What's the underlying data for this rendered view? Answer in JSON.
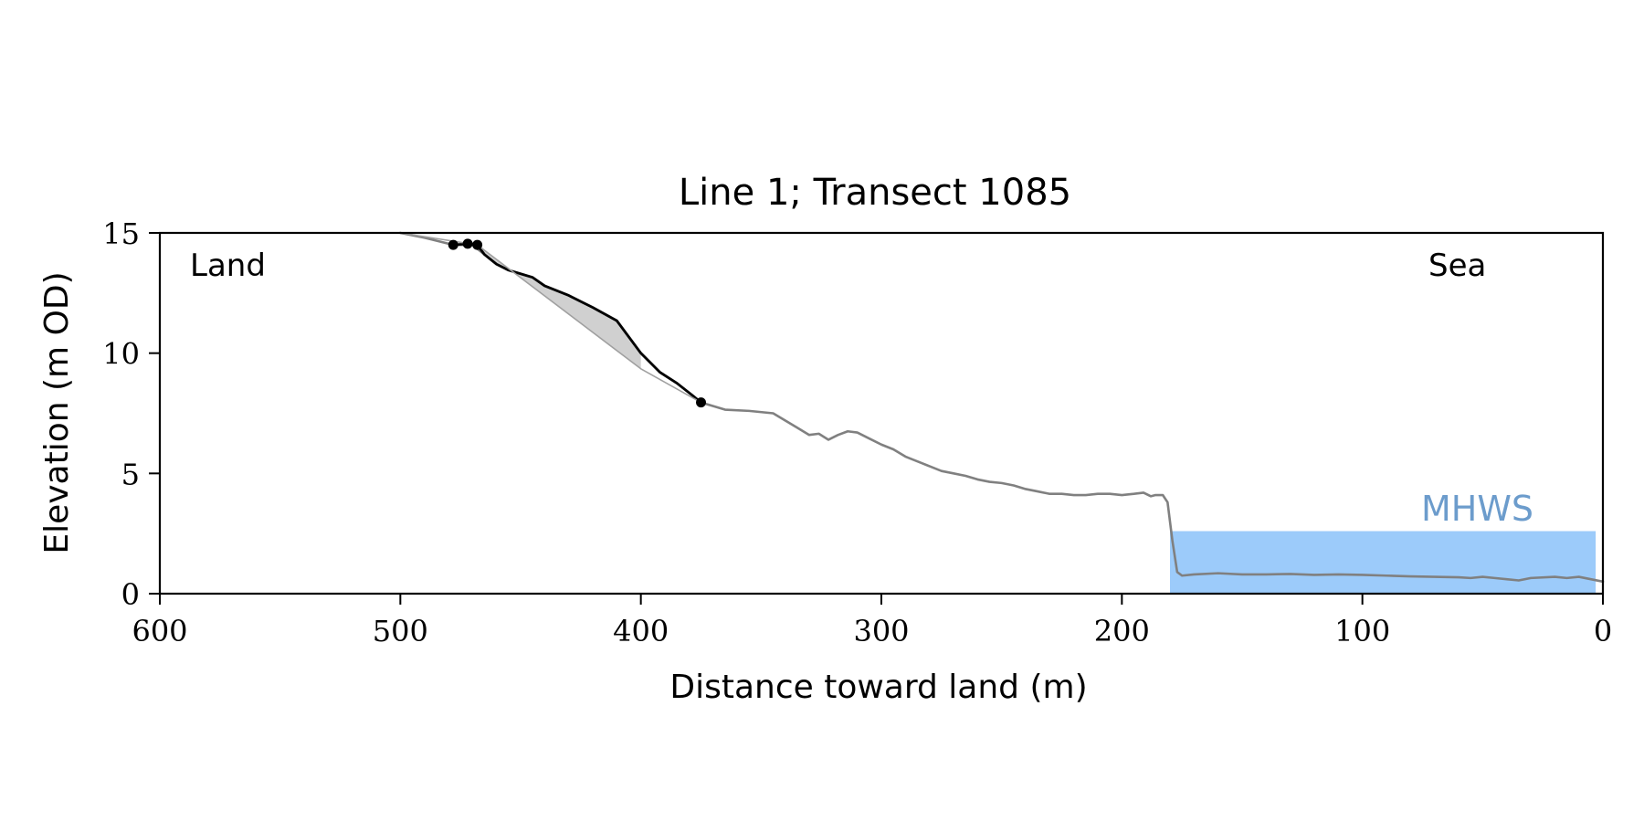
{
  "chart_data": {
    "type": "line",
    "title": "Line 1; Transect 1085",
    "xlabel": "Distance toward land (m)",
    "ylabel": "Elevation (m OD)",
    "xlim": [
      600,
      0
    ],
    "ylim": [
      0,
      15
    ],
    "x_ticks": [
      600,
      500,
      400,
      300,
      200,
      100,
      0
    ],
    "y_ticks": [
      0,
      5,
      10,
      15
    ],
    "annotations": {
      "land": "Land",
      "sea": "Sea",
      "mhws": "MHWS"
    },
    "mhws": {
      "level": 2.6,
      "x_range": [
        180,
        3
      ],
      "color": "#9ccbfa",
      "label_color": "#6c9ccc"
    },
    "series": [
      {
        "role": "full-profile",
        "color": "#808080",
        "points": [
          [
            500,
            15.0
          ],
          [
            490,
            14.8
          ],
          [
            478,
            14.5
          ],
          [
            470,
            14.5
          ],
          [
            465,
            14.1
          ],
          [
            460,
            13.7
          ],
          [
            455,
            13.45
          ],
          [
            450,
            13.3
          ],
          [
            445,
            13.15
          ],
          [
            440,
            12.8
          ],
          [
            430,
            12.4
          ],
          [
            420,
            11.9
          ],
          [
            410,
            11.35
          ],
          [
            400,
            10.0
          ],
          [
            392,
            9.2
          ],
          [
            385,
            8.75
          ],
          [
            378,
            8.2
          ],
          [
            375,
            7.95
          ],
          [
            365,
            7.65
          ],
          [
            355,
            7.6
          ],
          [
            345,
            7.5
          ],
          [
            340,
            7.2
          ],
          [
            335,
            6.9
          ],
          [
            330,
            6.6
          ],
          [
            326,
            6.65
          ],
          [
            322,
            6.4
          ],
          [
            318,
            6.6
          ],
          [
            314,
            6.75
          ],
          [
            310,
            6.7
          ],
          [
            305,
            6.45
          ],
          [
            300,
            6.2
          ],
          [
            295,
            6.0
          ],
          [
            290,
            5.7
          ],
          [
            285,
            5.5
          ],
          [
            280,
            5.3
          ],
          [
            275,
            5.1
          ],
          [
            270,
            5.0
          ],
          [
            265,
            4.9
          ],
          [
            260,
            4.75
          ],
          [
            255,
            4.65
          ],
          [
            250,
            4.6
          ],
          [
            245,
            4.5
          ],
          [
            240,
            4.35
          ],
          [
            235,
            4.25
          ],
          [
            230,
            4.15
          ],
          [
            225,
            4.15
          ],
          [
            220,
            4.1
          ],
          [
            215,
            4.1
          ],
          [
            210,
            4.15
          ],
          [
            205,
            4.15
          ],
          [
            200,
            4.1
          ],
          [
            195,
            4.15
          ],
          [
            191,
            4.2
          ],
          [
            188,
            4.05
          ],
          [
            186,
            4.1
          ],
          [
            183,
            4.1
          ],
          [
            181,
            3.8
          ],
          [
            179,
            2.2
          ],
          [
            177,
            0.9
          ],
          [
            175,
            0.75
          ],
          [
            170,
            0.8
          ],
          [
            160,
            0.85
          ],
          [
            150,
            0.8
          ],
          [
            140,
            0.8
          ],
          [
            130,
            0.82
          ],
          [
            120,
            0.78
          ],
          [
            110,
            0.8
          ],
          [
            100,
            0.78
          ],
          [
            90,
            0.75
          ],
          [
            80,
            0.72
          ],
          [
            70,
            0.7
          ],
          [
            60,
            0.68
          ],
          [
            55,
            0.65
          ],
          [
            50,
            0.7
          ],
          [
            45,
            0.65
          ],
          [
            40,
            0.6
          ],
          [
            35,
            0.55
          ],
          [
            30,
            0.65
          ],
          [
            20,
            0.7
          ],
          [
            15,
            0.65
          ],
          [
            10,
            0.7
          ],
          [
            5,
            0.6
          ],
          [
            0,
            0.5
          ]
        ]
      },
      {
        "role": "cliff-profile",
        "color": "#000000",
        "points": [
          [
            478,
            14.5
          ],
          [
            472,
            14.55
          ],
          [
            468,
            14.5
          ],
          [
            465,
            14.1
          ],
          [
            460,
            13.7
          ],
          [
            455,
            13.45
          ],
          [
            450,
            13.3
          ],
          [
            445,
            13.15
          ],
          [
            440,
            12.8
          ],
          [
            430,
            12.4
          ],
          [
            420,
            11.9
          ],
          [
            410,
            11.35
          ],
          [
            400,
            10.0
          ],
          [
            392,
            9.2
          ],
          [
            385,
            8.75
          ],
          [
            378,
            8.2
          ],
          [
            375,
            7.95
          ]
        ]
      },
      {
        "role": "cliff-chord",
        "color": "#a0a0a0",
        "points": [
          [
            500,
            15.0
          ],
          [
            468,
            14.5
          ],
          [
            400,
            9.35
          ],
          [
            375,
            7.95
          ]
        ]
      }
    ],
    "shaded_region": {
      "color": "#d0d0d0",
      "upper_points": [
        [
          468,
          14.5
        ],
        [
          465,
          14.1
        ],
        [
          460,
          13.7
        ],
        [
          455,
          13.45
        ],
        [
          450,
          13.3
        ],
        [
          445,
          13.15
        ],
        [
          440,
          12.8
        ],
        [
          430,
          12.4
        ],
        [
          420,
          11.9
        ],
        [
          410,
          11.35
        ],
        [
          400,
          10.0
        ]
      ],
      "lower_points": [
        [
          400,
          9.35
        ],
        [
          468,
          14.5
        ]
      ]
    },
    "markers": [
      {
        "x": 478,
        "y": 14.5
      },
      {
        "x": 472,
        "y": 14.55
      },
      {
        "x": 468,
        "y": 14.5
      },
      {
        "x": 375,
        "y": 7.95
      }
    ]
  }
}
